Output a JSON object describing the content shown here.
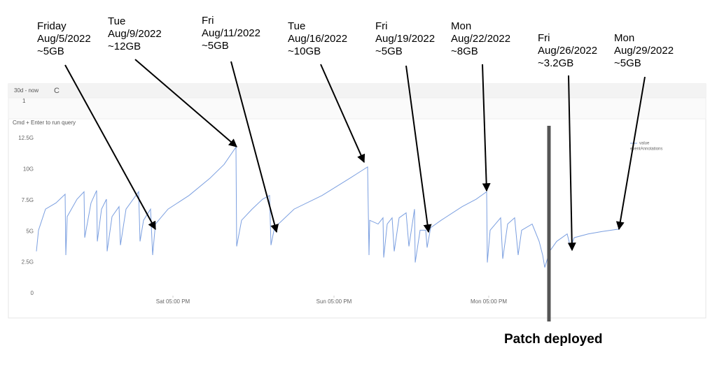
{
  "query": {
    "range": "30d - now",
    "line": "1",
    "hint": "Cmd + Enter to run query"
  },
  "chart_data": {
    "type": "line",
    "xlim": [
      0,
      834
    ],
    "xticks": [
      {
        "value": 195,
        "label": "Sat 05:00 PM"
      },
      {
        "value": 425,
        "label": "Sun 05:00 PM"
      },
      {
        "value": 646,
        "label": "Mon 05:00 PM"
      }
    ],
    "ylim": [
      0,
      12.5
    ],
    "yticks": [
      0,
      {
        "value": 2.5,
        "label": "2.5G"
      },
      {
        "value": 5,
        "label": "5G"
      },
      {
        "value": 7.5,
        "label": "7.5G"
      },
      {
        "value": 10,
        "label": "10G"
      },
      {
        "value": 12.5,
        "label": "12.5G"
      }
    ],
    "grid": false,
    "legend_extra": "eventAnnotations",
    "series": [
      {
        "name": "value",
        "color": "#7b9fe0",
        "x": [
          0,
          3,
          13,
          28,
          41,
          42,
          44,
          58,
          68,
          69,
          78,
          86,
          87,
          93,
          100,
          101,
          108,
          118,
          120,
          128,
          146,
          148,
          153,
          163,
          166,
          170,
          188,
          218,
          248,
          268,
          285,
          286,
          293,
          308,
          323,
          333,
          335,
          340,
          368,
          408,
          448,
          473,
          475,
          476,
          488,
          495,
          496,
          501,
          508,
          511,
          518,
          528,
          532,
          540,
          541,
          548,
          556,
          558,
          563,
          578,
          608,
          628,
          643,
          644,
          648,
          663,
          666,
          673,
          683,
          688,
          693,
          708,
          718,
          723,
          726,
          733,
          743,
          758,
          763,
          768,
          788,
          808,
          833
        ],
        "values": [
          3.4,
          5.1,
          6.8,
          7.3,
          8.0,
          3.1,
          6.2,
          7.6,
          8.2,
          4.5,
          7.3,
          8.3,
          4.2,
          6.8,
          7.6,
          3.4,
          6.2,
          7.0,
          3.9,
          6.8,
          8.2,
          4.2,
          5.9,
          6.8,
          3.1,
          5.6,
          6.8,
          7.9,
          9.3,
          10.4,
          11.8,
          3.8,
          5.9,
          6.8,
          7.6,
          7.9,
          3.9,
          5.3,
          6.8,
          7.9,
          9.3,
          10.2,
          3.1,
          5.9,
          5.6,
          6.1,
          2.9,
          5.6,
          6.1,
          3.4,
          6.1,
          6.5,
          3.8,
          6.8,
          2.5,
          5.1,
          5.1,
          3.7,
          5.3,
          5.9,
          7.0,
          7.6,
          8.2,
          2.5,
          5.1,
          6.1,
          2.8,
          5.6,
          6.1,
          3.1,
          5.1,
          5.6,
          4.2,
          3.1,
          2.1,
          3.4,
          4.2,
          4.8,
          3.7,
          4.5,
          4.8,
          5.0,
          5.2
        ]
      }
    ],
    "annotations": [
      [
        "Friday",
        "Aug/5/2022",
        "~5GB"
      ],
      [
        "Tue",
        "Aug/9/2022",
        "~12GB"
      ],
      [
        "Fri",
        "Aug/11/2022",
        "~5GB"
      ],
      [
        "Tue",
        "Aug/16/2022",
        "~10GB"
      ],
      [
        "Fri",
        "Aug/19/2022",
        "~5GB"
      ],
      [
        "Mon",
        "Aug/22/2022",
        "~8GB"
      ],
      [
        "Fri",
        "Aug/26/2022",
        "~3.2GB"
      ],
      [
        "Mon",
        "Aug/29/2022",
        "~5GB"
      ]
    ],
    "patch_label": "Patch deployed"
  }
}
